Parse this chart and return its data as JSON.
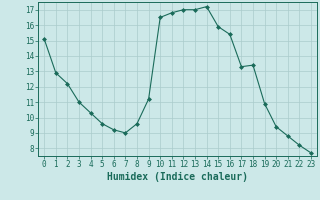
{
  "x": [
    0,
    1,
    2,
    3,
    4,
    5,
    6,
    7,
    8,
    9,
    10,
    11,
    12,
    13,
    14,
    15,
    16,
    17,
    18,
    19,
    20,
    21,
    22,
    23
  ],
  "y": [
    15.1,
    12.9,
    12.2,
    11.0,
    10.3,
    9.6,
    9.2,
    9.0,
    9.6,
    11.2,
    16.5,
    16.8,
    17.0,
    17.0,
    17.2,
    15.9,
    15.4,
    13.3,
    13.4,
    10.9,
    9.4,
    8.8,
    8.2,
    7.7
  ],
  "line_color": "#1a6b5a",
  "marker": "D",
  "marker_size": 2.0,
  "bg_color": "#cce8e8",
  "grid_color": "#aacccc",
  "xlabel": "Humidex (Indice chaleur)",
  "ylim": [
    7.5,
    17.5
  ],
  "xlim": [
    -0.5,
    23.5
  ],
  "yticks": [
    8,
    9,
    10,
    11,
    12,
    13,
    14,
    15,
    16,
    17
  ],
  "xticks": [
    0,
    1,
    2,
    3,
    4,
    5,
    6,
    7,
    8,
    9,
    10,
    11,
    12,
    13,
    14,
    15,
    16,
    17,
    18,
    19,
    20,
    21,
    22,
    23
  ],
  "tick_fontsize": 5.5,
  "xlabel_fontsize": 7.0,
  "linewidth": 0.8
}
